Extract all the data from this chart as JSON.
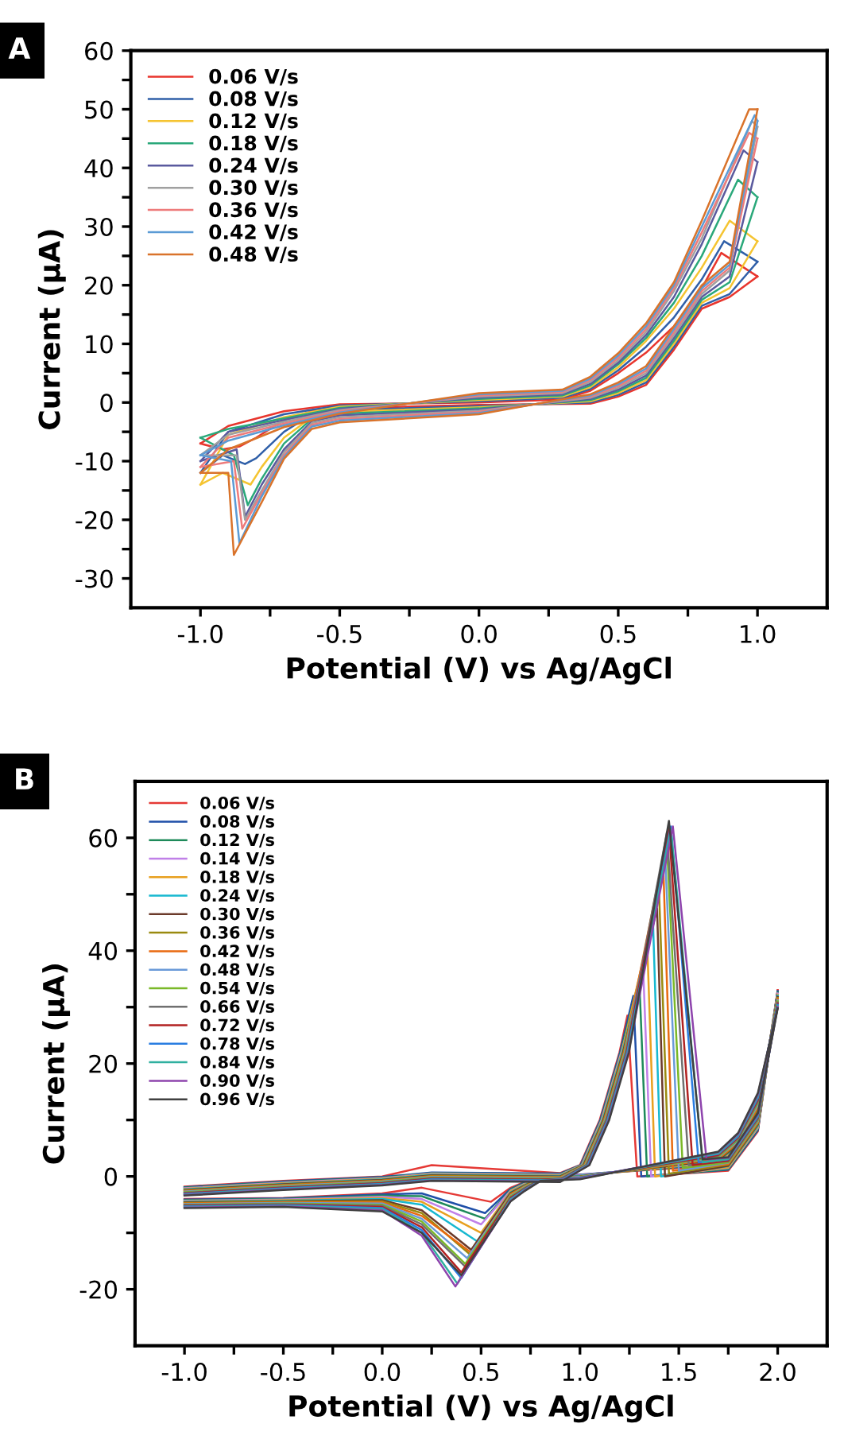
{
  "chart_data": [
    {
      "type": "line",
      "title": "A",
      "xlabel": "Potential (V) vs Ag/AgCl",
      "ylabel": "Current (μA)",
      "legend": "top left",
      "xlim": [
        -1.25,
        1.25
      ],
      "ylim": [
        -35,
        60
      ],
      "xticks": [
        {
          "value": -1.0,
          "label": "-1.0"
        },
        {
          "value": -0.75,
          "label": null
        },
        {
          "value": -0.5,
          "label": "-0.5"
        },
        {
          "value": -0.25,
          "label": null
        },
        {
          "value": 0.0,
          "label": "0.0"
        },
        {
          "value": 0.25,
          "label": null
        },
        {
          "value": 0.5,
          "label": "0.5"
        },
        {
          "value": 0.75,
          "label": null
        },
        {
          "value": 1.0,
          "label": "1.0"
        }
      ],
      "yticks": [
        -30,
        {
          "value": -25,
          "label": null
        },
        -20,
        {
          "value": -15,
          "label": null
        },
        -10,
        {
          "value": -5,
          "label": null
        },
        0,
        {
          "value": 5,
          "label": null
        },
        10,
        {
          "value": 15,
          "label": null
        },
        20,
        {
          "value": 25,
          "label": null
        },
        30,
        {
          "value": 35,
          "label": null
        },
        40,
        {
          "value": 45,
          "label": null
        },
        50,
        {
          "value": 55,
          "label": null
        },
        60
      ],
      "series": [
        {
          "name": "0.06 V/s",
          "color": "#e8352d",
          "x": [
            -1.0,
            -0.9,
            -0.7,
            -0.5,
            0.0,
            0.3,
            0.4,
            0.5,
            0.6,
            0.7,
            0.8,
            0.87,
            1.0
          ],
          "values": [
            -7,
            -4,
            -1.5,
            -0.3,
            0,
            0.5,
            2,
            5,
            8.5,
            13,
            19.5,
            25.5,
            21.5
          ]
        },
        {
          "color": "#e8352d",
          "x": [
            1.0,
            0.9,
            0.8,
            0.7,
            0.6,
            0.5,
            0.4,
            0.0,
            -0.5,
            -0.6,
            -0.7,
            -0.8,
            -0.86,
            -0.92,
            -1.0
          ],
          "values": [
            21.5,
            18,
            16,
            9,
            3,
            1,
            -0.2,
            -0.4,
            -1,
            -1.5,
            -3,
            -6,
            -7.5,
            -8,
            -7
          ]
        },
        {
          "name": "0.08 V/s",
          "color": "#2f5fa8",
          "x": [
            -1.0,
            -0.9,
            -0.7,
            -0.5,
            0.0,
            0.3,
            0.4,
            0.5,
            0.6,
            0.7,
            0.8,
            0.88,
            1.0
          ],
          "values": [
            -12,
            -5,
            -2,
            -0.5,
            0.2,
            0.8,
            2.3,
            5.5,
            9.5,
            14.5,
            21,
            27.5,
            24
          ]
        },
        {
          "color": "#2f5fa8",
          "x": [
            1.0,
            0.9,
            0.8,
            0.7,
            0.6,
            0.5,
            0.4,
            0.0,
            -0.5,
            -0.6,
            -0.7,
            -0.8,
            -0.84,
            -0.92,
            -1.0
          ],
          "values": [
            24,
            18.5,
            16.5,
            9.5,
            3.4,
            1.3,
            0,
            -0.6,
            -1.3,
            -2,
            -5,
            -9.5,
            -10.5,
            -9,
            -12
          ]
        },
        {
          "name": "0.12 V/s",
          "color": "#f5c431",
          "x": [
            -1.0,
            -0.9,
            -0.7,
            -0.5,
            0.0,
            0.3,
            0.4,
            0.5,
            0.6,
            0.7,
            0.8,
            0.9,
            1.0
          ],
          "values": [
            -14,
            -5.5,
            -2.5,
            -0.7,
            0.4,
            1,
            2.6,
            6,
            10.5,
            16,
            23,
            31,
            27.5
          ]
        },
        {
          "color": "#f5c431",
          "x": [
            1.0,
            0.9,
            0.8,
            0.7,
            0.6,
            0.5,
            0.4,
            0.0,
            -0.5,
            -0.6,
            -0.7,
            -0.78,
            -0.82,
            -0.92,
            -1.0
          ],
          "values": [
            27.5,
            19.5,
            17,
            10,
            3.8,
            1.6,
            0.2,
            -0.8,
            -1.6,
            -2.5,
            -6,
            -11,
            -14,
            -12,
            -14
          ]
        },
        {
          "name": "0.18 V/s",
          "color": "#2aa87a",
          "x": [
            -1.0,
            -0.9,
            -0.7,
            -0.5,
            0.0,
            0.3,
            0.4,
            0.5,
            0.6,
            0.7,
            0.8,
            0.93,
            1.0
          ],
          "values": [
            -6,
            -4.5,
            -2.7,
            -0.9,
            0.6,
            1.2,
            2.9,
            6.5,
            11,
            17,
            25,
            38,
            35
          ]
        },
        {
          "color": "#2aa87a",
          "x": [
            1.0,
            0.9,
            0.8,
            0.7,
            0.6,
            0.5,
            0.4,
            0.0,
            -0.5,
            -0.6,
            -0.7,
            -0.78,
            -0.83,
            -0.88,
            -1.0
          ],
          "values": [
            35,
            20.5,
            17.5,
            10.5,
            4.2,
            1.9,
            0.4,
            -1,
            -1.9,
            -2.8,
            -7,
            -13,
            -17.5,
            -9,
            -6
          ]
        },
        {
          "name": "0.24 V/s",
          "color": "#5a5a9e",
          "x": [
            -1.0,
            -0.9,
            -0.7,
            -0.5,
            0.0,
            0.3,
            0.4,
            0.5,
            0.6,
            0.7,
            0.8,
            0.95,
            1.0
          ],
          "values": [
            -10,
            -5,
            -3,
            -1.1,
            0.8,
            1.4,
            3.2,
            6.8,
            11.5,
            18,
            27,
            43,
            41
          ]
        },
        {
          "color": "#5a5a9e",
          "x": [
            1.0,
            0.9,
            0.8,
            0.7,
            0.6,
            0.5,
            0.4,
            0.0,
            -0.5,
            -0.6,
            -0.7,
            -0.78,
            -0.84,
            -0.87,
            -1.0
          ],
          "values": [
            41,
            21.5,
            18,
            11,
            4.6,
            2.2,
            0.6,
            -1.2,
            -2.2,
            -3.2,
            -8,
            -14,
            -19.5,
            -8,
            -10
          ]
        },
        {
          "name": "0.30 V/s",
          "color": "#a0a0a0",
          "x": [
            -1.0,
            -0.9,
            -0.7,
            -0.5,
            0.0,
            0.3,
            0.4,
            0.5,
            0.6,
            0.7,
            0.8,
            0.98,
            1.0
          ],
          "values": [
            -9,
            -5.5,
            -3.3,
            -1.3,
            1,
            1.6,
            3.5,
            7.2,
            12,
            19,
            28,
            48,
            47
          ]
        },
        {
          "color": "#a0a0a0",
          "x": [
            1.0,
            0.9,
            0.8,
            0.7,
            0.6,
            0.5,
            0.4,
            0.0,
            -0.5,
            -0.6,
            -0.7,
            -0.78,
            -0.84,
            -0.87,
            -1.0
          ],
          "values": [
            47,
            22.5,
            18.5,
            11.5,
            5,
            2.5,
            0.8,
            -1.4,
            -2.5,
            -3.5,
            -8.5,
            -15,
            -20,
            -9,
            -9
          ]
        },
        {
          "name": "0.36 V/s",
          "color": "#ee7b7b",
          "x": [
            -1.0,
            -0.9,
            -0.7,
            -0.5,
            0.0,
            0.3,
            0.4,
            0.5,
            0.6,
            0.7,
            0.8,
            0.97,
            1.0
          ],
          "values": [
            -11,
            -6,
            -3.6,
            -1.5,
            1.2,
            1.8,
            3.8,
            7.6,
            12.5,
            19.5,
            29,
            46,
            45
          ]
        },
        {
          "color": "#ee7b7b",
          "x": [
            1.0,
            0.9,
            0.8,
            0.7,
            0.6,
            0.5,
            0.4,
            0.0,
            -0.5,
            -0.6,
            -0.7,
            -0.78,
            -0.85,
            -0.88,
            -1.0
          ],
          "values": [
            45,
            23,
            19,
            12,
            5.4,
            2.8,
            1,
            -1.6,
            -2.8,
            -3.8,
            -9,
            -15.5,
            -21.5,
            -10,
            -11
          ]
        },
        {
          "name": "0.42 V/s",
          "color": "#5b9bd5",
          "x": [
            -1.0,
            -0.9,
            -0.7,
            -0.5,
            0.0,
            0.3,
            0.4,
            0.5,
            0.6,
            0.7,
            0.8,
            0.99,
            1.0
          ],
          "values": [
            -9,
            -6.5,
            -3.9,
            -1.7,
            1.4,
            2,
            4.1,
            8,
            13,
            20,
            30,
            49,
            48
          ]
        },
        {
          "color": "#5b9bd5",
          "x": [
            1.0,
            0.9,
            0.8,
            0.7,
            0.6,
            0.5,
            0.4,
            0.0,
            -0.5,
            -0.6,
            -0.7,
            -0.78,
            -0.86,
            -0.89,
            -1.0
          ],
          "values": [
            48,
            23.5,
            19.5,
            12.5,
            5.8,
            3.1,
            1.2,
            -1.8,
            -3.1,
            -4.1,
            -9.3,
            -16,
            -24,
            -10,
            -9
          ]
        },
        {
          "name": "0.48 V/s",
          "color": "#d9732b",
          "x": [
            -1.0,
            -0.9,
            -0.7,
            -0.5,
            0.0,
            0.3,
            0.4,
            0.5,
            0.6,
            0.7,
            0.8,
            0.97,
            1.0
          ],
          "values": [
            -12,
            -8,
            -4.2,
            -1.9,
            1.6,
            2.2,
            4.4,
            8.4,
            13.5,
            20.5,
            31,
            50,
            50
          ]
        },
        {
          "color": "#d9732b",
          "x": [
            1.0,
            0.9,
            0.8,
            0.7,
            0.6,
            0.5,
            0.4,
            0.0,
            -0.5,
            -0.6,
            -0.7,
            -0.78,
            -0.88,
            -0.9,
            -1.0
          ],
          "values": [
            50,
            24,
            20,
            13,
            6.2,
            3.4,
            1.4,
            -2,
            -3.4,
            -4.5,
            -9.6,
            -17,
            -26,
            -12,
            -12
          ]
        }
      ]
    },
    {
      "type": "line",
      "title": "B",
      "xlabel": "Potential (V) vs Ag/AgCl",
      "ylabel": "Current (μA)",
      "legend": "top left",
      "xlim": [
        -1.25,
        2.25
      ],
      "ylim": [
        -30,
        70
      ],
      "xticks": [
        {
          "value": -1.0,
          "label": "-1.0"
        },
        {
          "value": -0.75,
          "label": null
        },
        {
          "value": -0.5,
          "label": "-0.5"
        },
        {
          "value": -0.25,
          "label": null
        },
        {
          "value": 0.0,
          "label": "0.0"
        },
        {
          "value": 0.25,
          "label": null
        },
        {
          "value": 0.5,
          "label": "0.5"
        },
        {
          "value": 0.75,
          "label": null
        },
        {
          "value": 1.0,
          "label": "1.0"
        },
        {
          "value": 1.25,
          "label": null
        },
        {
          "value": 1.5,
          "label": "1.5"
        },
        {
          "value": 1.75,
          "label": null
        },
        {
          "value": 2.0,
          "label": "2.0"
        }
      ],
      "yticks": [
        -20,
        {
          "value": -10,
          "label": null
        },
        0,
        {
          "value": 10,
          "label": null
        },
        20,
        {
          "value": 30,
          "label": null
        },
        40,
        {
          "value": 50,
          "label": null
        },
        60
      ],
      "series": [
        {
          "name": "0.06 V/s",
          "color": "#e53935",
          "x": [
            -1.0,
            -0.5,
            0.0,
            0.25,
            0.9,
            1.0,
            1.1,
            1.2,
            1.24,
            1.29,
            1.75,
            1.9,
            2.0
          ],
          "values": [
            -1.8,
            -0.8,
            0,
            2,
            0.6,
            2,
            10,
            22,
            28.5,
            0,
            1,
            8,
            33
          ]
        },
        {
          "color": "#e53935",
          "x": [
            2.0,
            1.9,
            1.8,
            1.7,
            1.0,
            0.8,
            0.72,
            0.65,
            0.55,
            0.2,
            0.0,
            -0.5,
            -1.0
          ],
          "values": [
            33,
            10,
            4.5,
            2,
            0.3,
            0,
            -1,
            -2,
            -4.5,
            -2,
            -3,
            -3.8,
            -4
          ]
        },
        {
          "name": "0.08 V/s",
          "color": "#1f4fa8",
          "x": [
            -1.0,
            -0.5,
            0.0,
            0.25,
            0.9,
            1.003,
            1.103,
            1.203,
            1.27,
            1.31,
            1.75,
            1.9,
            2.0
          ],
          "values": [
            -1.9,
            -0.9,
            -0.1,
            0.7,
            0.5,
            2,
            10,
            22,
            32,
            0,
            1.2,
            8.2,
            32.8
          ]
        },
        {
          "color": "#1f4fa8",
          "x": [
            2.0,
            1.9,
            1.8,
            1.7,
            1.0,
            0.8,
            0.72,
            0.65,
            0.52,
            0.2,
            0.0,
            -0.5,
            -1.0
          ],
          "values": [
            32.8,
            10.3,
            4.7,
            2.2,
            0.3,
            -0.1,
            -1.1,
            -2.2,
            -6.5,
            -3,
            -3.2,
            -3.9,
            -4.1
          ]
        },
        {
          "name": "0.12 V/s",
          "color": "#1e8a5a",
          "x": [
            -1.0,
            -0.5,
            0.0,
            0.25,
            0.9,
            1.006,
            1.106,
            1.206,
            1.3,
            1.34,
            1.75,
            1.9,
            2.0
          ],
          "values": [
            -2.0,
            -1.0,
            -0.2,
            0.6,
            0.4,
            2,
            10,
            22,
            35,
            0,
            1.3,
            8.4,
            32.6
          ]
        },
        {
          "color": "#1e8a5a",
          "x": [
            2.0,
            1.9,
            1.8,
            1.7,
            1.0,
            0.8,
            0.72,
            0.65,
            0.52,
            0.2,
            0.0,
            -0.5,
            -1.0
          ],
          "values": [
            32.6,
            10.6,
            4.9,
            2.3,
            0.2,
            -0.1,
            -1.2,
            -2.3,
            -7.5,
            -3.5,
            -3.4,
            -4.0,
            -4.2
          ]
        },
        {
          "name": "0.14 V/s",
          "color": "#c080e8",
          "x": [
            -1.0,
            -0.5,
            0.0,
            0.25,
            0.9,
            1.009,
            1.109,
            1.209,
            1.32,
            1.36,
            1.75,
            1.9,
            2.0
          ],
          "values": [
            -2.1,
            -1.1,
            -0.3,
            0.5,
            0.3,
            2,
            10,
            22,
            36.5,
            0,
            1.5,
            8.6,
            32.4
          ]
        },
        {
          "color": "#c080e8",
          "x": [
            2.0,
            1.9,
            1.8,
            1.7,
            1.0,
            0.8,
            0.72,
            0.65,
            0.5,
            0.2,
            0.0,
            -0.5,
            -1.0
          ],
          "values": [
            32.4,
            10.9,
            5.1,
            2.5,
            0.2,
            -0.2,
            -1.3,
            -2.5,
            -8.5,
            -4,
            -3.6,
            -4.1,
            -4.3
          ]
        },
        {
          "name": "0.18 V/s",
          "color": "#e8a020",
          "x": [
            -1.0,
            -0.5,
            0.0,
            0.25,
            0.9,
            1.012,
            1.112,
            1.212,
            1.34,
            1.38,
            1.75,
            1.9,
            2.0
          ],
          "values": [
            -2.2,
            -1.2,
            -0.4,
            0.4,
            0.2,
            2,
            10,
            22,
            41.5,
            0,
            1.6,
            8.8,
            32.2
          ]
        },
        {
          "color": "#e8a020",
          "x": [
            2.0,
            1.9,
            1.8,
            1.7,
            1.0,
            0.8,
            0.72,
            0.65,
            0.5,
            0.2,
            0.0,
            -0.5,
            -1.0
          ],
          "values": [
            32.2,
            11.2,
            5.3,
            2.6,
            0.1,
            -0.2,
            -1.4,
            -2.6,
            -10,
            -4.5,
            -3.8,
            -4.2,
            -4.4
          ]
        },
        {
          "name": "0.24 V/s",
          "color": "#17b8d0",
          "x": [
            -1.0,
            -0.5,
            0.0,
            0.25,
            0.9,
            1.015,
            1.115,
            1.215,
            1.37,
            1.41,
            1.75,
            1.9,
            2.0
          ],
          "values": [
            -2.3,
            -1.3,
            -0.5,
            0.3,
            0.1,
            2,
            10,
            22,
            44.5,
            0,
            1.8,
            9,
            32
          ]
        },
        {
          "color": "#17b8d0",
          "x": [
            2.0,
            1.9,
            1.8,
            1.7,
            1.0,
            0.8,
            0.72,
            0.65,
            0.48,
            0.2,
            0.0,
            -0.5,
            -1.0
          ],
          "values": [
            32,
            11.5,
            5.5,
            2.8,
            0.1,
            -0.3,
            -1.5,
            -2.8,
            -11.5,
            -5,
            -4,
            -4.3,
            -4.5
          ]
        },
        {
          "name": "0.30 V/s",
          "color": "#6b3a2a",
          "x": [
            -1.0,
            -0.5,
            0.0,
            0.25,
            0.9,
            1.018,
            1.118,
            1.218,
            1.39,
            1.43,
            1.75,
            1.9,
            2.0
          ],
          "values": [
            -2.4,
            -1.4,
            -0.6,
            0.2,
            0,
            2,
            10,
            22,
            47.5,
            0,
            1.9,
            9.2,
            31.8
          ]
        },
        {
          "color": "#6b3a2a",
          "x": [
            2.0,
            1.9,
            1.8,
            1.7,
            1.0,
            0.8,
            0.72,
            0.65,
            0.45,
            0.2,
            0.0,
            -0.5,
            -1.0
          ],
          "values": [
            31.8,
            11.8,
            5.7,
            2.9,
            0,
            -0.3,
            -1.6,
            -2.9,
            -13,
            -6,
            -4.2,
            -4.4,
            -4.6
          ]
        },
        {
          "name": "0.36 V/s",
          "color": "#9a8a10",
          "x": [
            -1.0,
            -0.5,
            0.0,
            0.25,
            0.9,
            1.021,
            1.121,
            1.221,
            1.4,
            1.45,
            1.75,
            1.9,
            2.0
          ],
          "values": [
            -2.5,
            -1.5,
            -0.7,
            0.1,
            -0.1,
            2,
            10,
            22,
            50.5,
            0.5,
            2.1,
            9.4,
            31.6
          ]
        },
        {
          "color": "#9a8a10",
          "x": [
            2.0,
            1.9,
            1.8,
            1.7,
            1.0,
            0.8,
            0.72,
            0.65,
            0.45,
            0.2,
            0.0,
            -0.5,
            -1.0
          ],
          "values": [
            31.6,
            12.1,
            5.9,
            3.1,
            0,
            -0.4,
            -1.7,
            -3.1,
            -14,
            -6.5,
            -4.4,
            -4.5,
            -4.7
          ]
        },
        {
          "name": "0.42 V/s",
          "color": "#e86a10",
          "x": [
            -1.0,
            -0.5,
            0.0,
            0.25,
            0.9,
            1.024,
            1.124,
            1.224,
            1.42,
            1.47,
            1.75,
            1.9,
            2.0
          ],
          "values": [
            -2.6,
            -1.6,
            -0.8,
            0,
            -0.2,
            2,
            10,
            22,
            56.5,
            1,
            2.2,
            9.6,
            31.4
          ]
        },
        {
          "color": "#e86a10",
          "x": [
            2.0,
            1.9,
            1.8,
            1.7,
            1.0,
            0.8,
            0.72,
            0.65,
            0.45,
            0.2,
            0.0,
            -0.5,
            -1.0
          ],
          "values": [
            31.4,
            12.4,
            6.1,
            3.2,
            -0.1,
            -0.4,
            -1.8,
            -3.2,
            -13.5,
            -7,
            -4.6,
            -4.6,
            -4.8
          ]
        },
        {
          "name": "0.48 V/s",
          "color": "#6a9ad8",
          "x": [
            -1.0,
            -0.5,
            0.0,
            0.25,
            0.9,
            1.027,
            1.127,
            1.227,
            1.43,
            1.5,
            1.75,
            1.9,
            2.0
          ],
          "values": [
            -2.7,
            -1.7,
            -0.9,
            -0.1,
            -0.3,
            2,
            10,
            22,
            57.5,
            1,
            2.4,
            9.8,
            31.2
          ]
        },
        {
          "color": "#6a9ad8",
          "x": [
            2.0,
            1.9,
            1.8,
            1.7,
            1.0,
            0.8,
            0.72,
            0.65,
            0.43,
            0.2,
            0.0,
            -0.5,
            -1.0
          ],
          "values": [
            31.2,
            12.7,
            6.3,
            3.4,
            -0.1,
            -0.5,
            -1.9,
            -3.4,
            -14.5,
            -7.5,
            -4.8,
            -4.7,
            -4.9
          ]
        },
        {
          "name": "0.54 V/s",
          "color": "#7ab828",
          "x": [
            -1.0,
            -0.5,
            0.0,
            0.25,
            0.9,
            1.03,
            1.13,
            1.23,
            1.44,
            1.52,
            1.75,
            1.9,
            2.0
          ],
          "values": [
            -2.8,
            -1.8,
            -1.0,
            -0.2,
            -0.4,
            2,
            10,
            22,
            58.5,
            1.5,
            2.5,
            10,
            31
          ]
        },
        {
          "color": "#7ab828",
          "x": [
            2.0,
            1.9,
            1.8,
            1.7,
            1.0,
            0.8,
            0.72,
            0.65,
            0.42,
            0.2,
            0.0,
            -0.5,
            -1.0
          ],
          "values": [
            31,
            13,
            6.5,
            3.5,
            -0.2,
            -0.5,
            -2,
            -3.5,
            -15.5,
            -8,
            -5,
            -4.8,
            -5
          ]
        },
        {
          "name": "0.66 V/s",
          "color": "#707070",
          "x": [
            -1.0,
            -0.5,
            0.0,
            0.25,
            0.9,
            1.033,
            1.133,
            1.233,
            1.44,
            1.55,
            1.75,
            1.9,
            2.0
          ],
          "values": [
            -2.9,
            -1.9,
            -1.1,
            -0.3,
            -0.5,
            2,
            10,
            22,
            61,
            2,
            2.7,
            10.2,
            30.8
          ]
        },
        {
          "color": "#707070",
          "x": [
            2.0,
            1.9,
            1.8,
            1.7,
            1.0,
            0.8,
            0.72,
            0.65,
            0.42,
            0.2,
            0.0,
            -0.5,
            -1.0
          ],
          "values": [
            30.8,
            13.3,
            6.7,
            3.7,
            -0.2,
            -0.6,
            -2.1,
            -3.7,
            -16,
            -8.5,
            -5.2,
            -4.9,
            -5.1
          ]
        },
        {
          "name": "0.72 V/s",
          "color": "#b22222",
          "x": [
            -1.0,
            -0.5,
            0.0,
            0.25,
            0.9,
            1.036,
            1.136,
            1.236,
            1.45,
            1.57,
            1.75,
            1.9,
            2.0
          ],
          "values": [
            -3.0,
            -2.0,
            -1.2,
            -0.4,
            -0.6,
            2,
            10,
            22,
            61.5,
            2,
            2.8,
            10.4,
            30.6
          ]
        },
        {
          "color": "#b22222",
          "x": [
            2.0,
            1.9,
            1.8,
            1.7,
            1.0,
            0.8,
            0.72,
            0.65,
            0.4,
            0.2,
            0.0,
            -0.5,
            -1.0
          ],
          "values": [
            30.6,
            13.6,
            6.9,
            3.8,
            -0.3,
            -0.6,
            -2.2,
            -3.8,
            -17,
            -9,
            -5.4,
            -5.0,
            -5.2
          ]
        },
        {
          "name": "0.78 V/s",
          "color": "#2a7de1",
          "x": [
            -1.0,
            -0.5,
            0.0,
            0.25,
            0.9,
            1.039,
            1.139,
            1.239,
            1.46,
            1.6,
            1.75,
            1.9,
            2.0
          ],
          "values": [
            -3.1,
            -2.1,
            -1.3,
            -0.5,
            -0.7,
            2,
            10,
            22,
            62,
            2.5,
            3,
            10.6,
            30.4
          ]
        },
        {
          "color": "#2a7de1",
          "x": [
            2.0,
            1.9,
            1.8,
            1.7,
            1.0,
            0.8,
            0.72,
            0.65,
            0.4,
            0.2,
            0.0,
            -0.5,
            -1.0
          ],
          "values": [
            30.4,
            13.9,
            7.1,
            4,
            -0.3,
            -0.7,
            -2.3,
            -4,
            -18,
            -9.5,
            -5.6,
            -5.1,
            -5.3
          ]
        },
        {
          "name": "0.84 V/s",
          "color": "#30b0a0",
          "x": [
            -1.0,
            -0.5,
            0.0,
            0.25,
            0.9,
            1.042,
            1.142,
            1.242,
            1.46,
            1.62,
            1.75,
            1.9,
            2.0
          ],
          "values": [
            -3.2,
            -2.2,
            -1.4,
            -0.6,
            -0.8,
            2,
            10,
            22,
            61.5,
            2.5,
            3.1,
            10.8,
            30.2
          ]
        },
        {
          "color": "#30b0a0",
          "x": [
            2.0,
            1.9,
            1.8,
            1.7,
            1.0,
            0.8,
            0.72,
            0.65,
            0.38,
            0.2,
            0.0,
            -0.5,
            -1.0
          ],
          "values": [
            30.2,
            14.2,
            7.3,
            4.1,
            -0.4,
            -0.7,
            -2.4,
            -4.1,
            -19,
            -10,
            -5.8,
            -5.2,
            -5.4
          ]
        },
        {
          "name": "0.90 V/s",
          "color": "#8e44ad",
          "x": [
            -1.0,
            -0.5,
            0.0,
            0.25,
            0.9,
            1.045,
            1.145,
            1.245,
            1.47,
            1.64,
            1.75,
            1.9,
            2.0
          ],
          "values": [
            -3.3,
            -2.3,
            -1.5,
            -0.7,
            -0.9,
            2,
            10,
            22,
            62,
            3,
            3.3,
            11,
            30
          ]
        },
        {
          "color": "#8e44ad",
          "x": [
            2.0,
            1.9,
            1.8,
            1.7,
            1.0,
            0.8,
            0.72,
            0.65,
            0.37,
            0.2,
            0.0,
            -0.5,
            -1.0
          ],
          "values": [
            30,
            14.5,
            7.5,
            4.3,
            -0.4,
            -0.8,
            -2.5,
            -4.3,
            -19.5,
            -10.5,
            -6,
            -5.3,
            -5.5
          ]
        },
        {
          "name": "0.96 V/s",
          "color": "#404040",
          "x": [
            -1.0,
            -0.5,
            0.0,
            0.25,
            0.9,
            1.048,
            1.148,
            1.248,
            1.45,
            1.62,
            1.75,
            1.9,
            2.0
          ],
          "values": [
            -3.4,
            -2.4,
            -1.6,
            -0.8,
            -1.0,
            2,
            10,
            22,
            63,
            3,
            3.4,
            11.2,
            29.8
          ]
        },
        {
          "color": "#404040",
          "x": [
            2.0,
            1.9,
            1.8,
            1.7,
            1.0,
            0.8,
            0.72,
            0.65,
            0.4,
            0.2,
            0.0,
            -0.5,
            -1.0
          ],
          "values": [
            29.8,
            14.8,
            7.7,
            4.4,
            -0.5,
            -0.8,
            -2.6,
            -4.4,
            -17.5,
            -10,
            -6.2,
            -5.4,
            -5.6
          ]
        }
      ]
    }
  ]
}
